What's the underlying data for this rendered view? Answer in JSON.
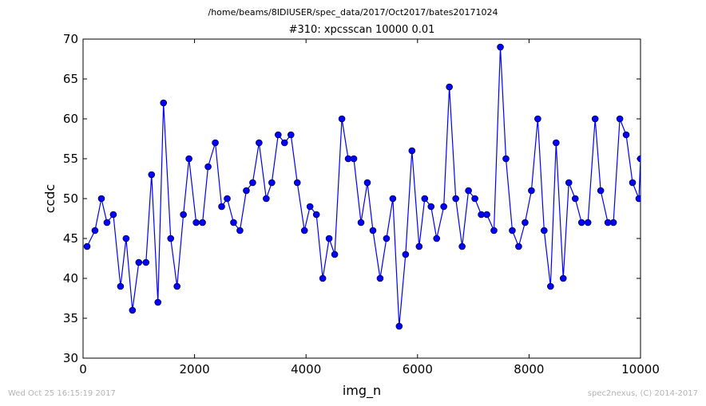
{
  "header": {
    "suptitle": "/home/beams/8IDIUSER/spec_data/2017/Oct2017/bates20171024"
  },
  "footer": {
    "timestamp": "Wed Oct 25 16:15:19 2017",
    "credit": "spec2nexus, (C) 2014-2017"
  },
  "chart_data": {
    "type": "line",
    "title": "#310: xpcsscan 10000 0.01",
    "xlabel": "img_n",
    "ylabel": "ccdc",
    "xlim": [
      0,
      10000
    ],
    "ylim": [
      30,
      70
    ],
    "xticks": [
      "0",
      "2000",
      "4000",
      "6000",
      "8000",
      "10000"
    ],
    "yticks": [
      "30",
      "35",
      "40",
      "45",
      "50",
      "55",
      "60",
      "65",
      "70"
    ],
    "grid": false,
    "series_color": "#0000ff",
    "series": [
      {
        "x": [
          72,
          214,
          329,
          429,
          543,
          672,
          772,
          886,
          1000,
          1129,
          1229,
          1343,
          1443,
          1572,
          1686,
          1800,
          1900,
          2029,
          2143,
          2243,
          2372,
          2486,
          2586,
          2700,
          2814,
          2929,
          3043,
          3157,
          3286,
          3386,
          3500,
          3614,
          3729,
          3843,
          3971,
          4071,
          4186,
          4300,
          4414,
          4514,
          4643,
          4757,
          4857,
          4986,
          5100,
          5200,
          5329,
          5443,
          5557,
          5671,
          5786,
          5900,
          6029,
          6129,
          6243,
          6343,
          6471,
          6571,
          6686,
          6800,
          6914,
          7029,
          7143,
          7243,
          7371,
          7486,
          7586,
          7700,
          7814,
          7929,
          8043,
          8157,
          8271,
          8386,
          8486,
          8614,
          8714,
          8829,
          8943,
          9057,
          9186,
          9286,
          9414,
          9514,
          9629,
          9743,
          9857,
          9971,
          10000
        ],
        "y": [
          44,
          46,
          50,
          47,
          48,
          39,
          45,
          36,
          42,
          42,
          53,
          37,
          62,
          45,
          39,
          48,
          55,
          47,
          47,
          54,
          57,
          49,
          50,
          47,
          46,
          51,
          52,
          57,
          50,
          52,
          58,
          57,
          58,
          52,
          46,
          49,
          48,
          40,
          45,
          43,
          60,
          55,
          55,
          47,
          52,
          46,
          40,
          45,
          50,
          34,
          43,
          56,
          44,
          50,
          49,
          45,
          49,
          64,
          50,
          44,
          51,
          50,
          48,
          48,
          46,
          69,
          55,
          46,
          44,
          47,
          51,
          60,
          46,
          39,
          57,
          40,
          52,
          50,
          47,
          47,
          60,
          51,
          47,
          47,
          60,
          58,
          52,
          50,
          55
        ]
      }
    ]
  }
}
